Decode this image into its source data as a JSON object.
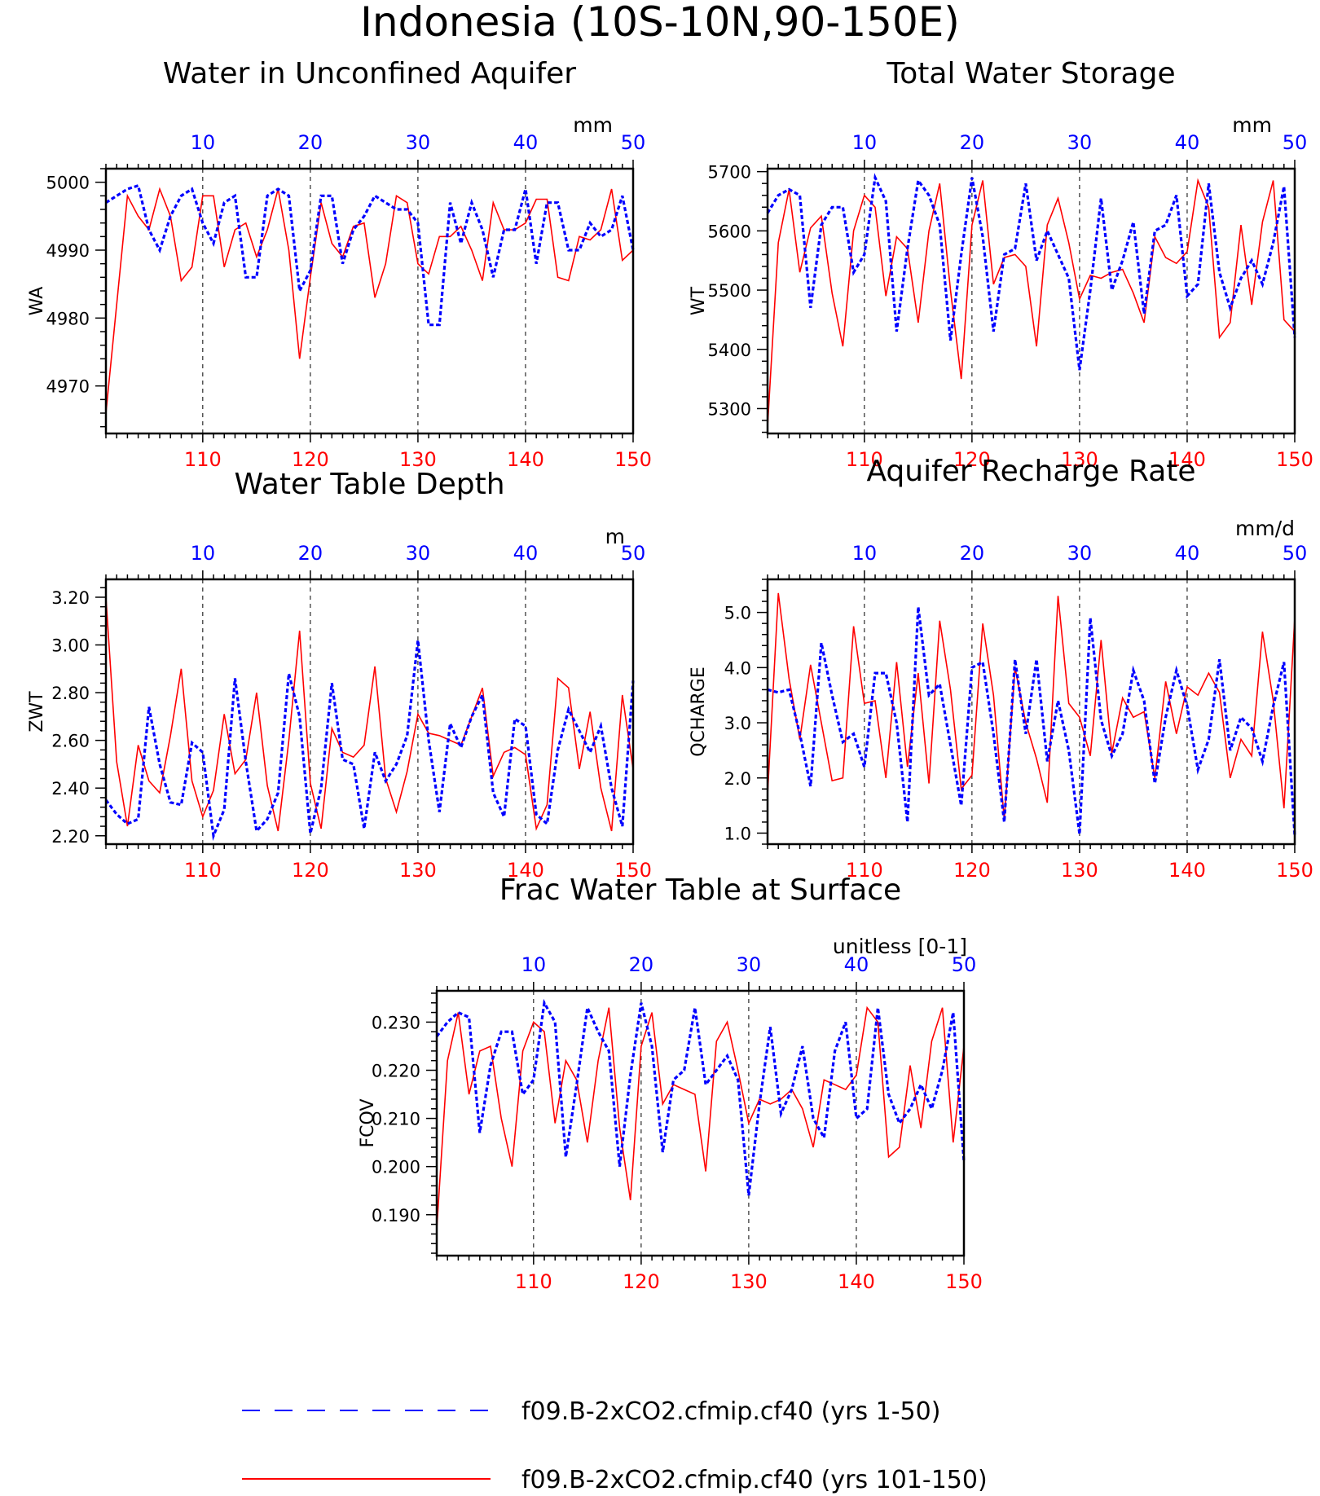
{
  "page": {
    "title": "Indonesia (10S-10N,90-150E)"
  },
  "legend": {
    "placement": "bottom",
    "entries": [
      {
        "label": "f09.B-2xCO2.cfmip.cf40 (yrs 1-50)",
        "color": "#0000ff",
        "style": "dashed"
      },
      {
        "label": "f09.B-2xCO2.cfmip.cf40 (yrs 101-150)",
        "color": "#ff0000",
        "style": "solid"
      }
    ]
  },
  "chart_data": [
    {
      "type": "line",
      "title": "Water in Unconfined Aquifer",
      "ylabel": "WA",
      "units": "mm",
      "ylim": [
        4963,
        5002
      ],
      "yticks": [
        4970,
        4980,
        4990,
        5000
      ],
      "ytick_labels": [
        "4970",
        "4980",
        "4990",
        "5000"
      ],
      "x_top": {
        "range": [
          1,
          50
        ],
        "ticks": [
          10,
          20,
          30,
          40,
          50
        ],
        "color": "#0000ff"
      },
      "x_bottom": {
        "range": [
          101,
          150
        ],
        "ticks": [
          110,
          120,
          130,
          140,
          150
        ],
        "color": "#ff0000"
      },
      "grid": "vertical dashed at major ticks",
      "series": [
        {
          "color": "#0000ff",
          "style": "dashed",
          "values": [
            4997,
            4998,
            4999,
            4999.5,
            4993,
            4990,
            4995,
            4998,
            4999,
            4994,
            4991,
            4997,
            4998,
            4986,
            4986,
            4998,
            4999,
            4998,
            4984,
            4987,
            4998,
            4998,
            4988,
            4993,
            4995,
            4998,
            4997,
            4996,
            4996,
            4994,
            4979,
            4979,
            4997,
            4991,
            4997,
            4993,
            4986,
            4993,
            4993,
            4999,
            4988,
            4997,
            4997,
            4990,
            4990,
            4994,
            4992,
            4993,
            4998,
            4990
          ]
        },
        {
          "color": "#ff0000",
          "style": "solid",
          "values": [
            4966,
            4982,
            4998,
            4995,
            4993,
            4999,
            4995,
            4985.5,
            4987.5,
            4998,
            4998,
            4987.5,
            4993,
            4994,
            4989,
            4993,
            4999,
            4990,
            4974,
            4986,
            4997,
            4991,
            4989,
            4993.5,
            4994,
            4983,
            4988,
            4998,
            4997,
            4988,
            4986.5,
            4992,
            4992,
            4993.5,
            4990,
            4985.5,
            4997,
            4993,
            4993,
            4994,
            4997.5,
            4997.5,
            4986,
            4985.5,
            4992,
            4991.5,
            4993,
            4999,
            4988.5,
            4990
          ]
        }
      ]
    },
    {
      "type": "line",
      "title": "Total Water Storage",
      "ylabel": "WT",
      "units": "mm",
      "ylim": [
        5258,
        5705
      ],
      "yticks": [
        5300,
        5400,
        5500,
        5600,
        5700
      ],
      "ytick_labels": [
        "5300",
        "5400",
        "5500",
        "5600",
        "5700"
      ],
      "x_top": {
        "range": [
          1,
          50
        ],
        "ticks": [
          10,
          20,
          30,
          40,
          50
        ],
        "color": "#0000ff"
      },
      "x_bottom": {
        "range": [
          101,
          150
        ],
        "ticks": [
          110,
          120,
          130,
          140,
          150
        ],
        "color": "#ff0000"
      },
      "grid": "vertical dashed at major ticks",
      "series": [
        {
          "color": "#0000ff",
          "style": "dashed",
          "values": [
            5630,
            5660,
            5670,
            5660,
            5470,
            5610,
            5640,
            5640,
            5530,
            5560,
            5690,
            5650,
            5430,
            5570,
            5685,
            5660,
            5610,
            5415,
            5560,
            5690,
            5590,
            5430,
            5560,
            5570,
            5680,
            5550,
            5600,
            5560,
            5520,
            5365,
            5500,
            5655,
            5500,
            5550,
            5615,
            5460,
            5600,
            5610,
            5660,
            5490,
            5510,
            5680,
            5530,
            5470,
            5520,
            5550,
            5510,
            5580,
            5675,
            5420
          ]
        },
        {
          "color": "#ff0000",
          "style": "solid",
          "values": [
            5270,
            5580,
            5670,
            5530,
            5605,
            5625,
            5495,
            5405,
            5600,
            5660,
            5640,
            5490,
            5590,
            5570,
            5445,
            5600,
            5680,
            5500,
            5350,
            5610,
            5685,
            5510,
            5555,
            5560,
            5540,
            5405,
            5610,
            5655,
            5580,
            5485,
            5525,
            5520,
            5530,
            5535,
            5495,
            5445,
            5590,
            5555,
            5545,
            5565,
            5685,
            5640,
            5420,
            5445,
            5610,
            5475,
            5615,
            5685,
            5450,
            5430
          ]
        }
      ]
    },
    {
      "type": "line",
      "title": "Water Table Depth",
      "ylabel": "ZWT",
      "units": "m",
      "ylim": [
        2.165,
        3.275
      ],
      "yticks": [
        2.2,
        2.4,
        2.6,
        2.8,
        3.0,
        3.2
      ],
      "ytick_labels": [
        "2.20",
        "2.40",
        "2.60",
        "2.80",
        "3.00",
        "3.20"
      ],
      "x_top": {
        "range": [
          1,
          50
        ],
        "ticks": [
          10,
          20,
          30,
          40,
          50
        ],
        "color": "#0000ff"
      },
      "x_bottom": {
        "range": [
          101,
          150
        ],
        "ticks": [
          110,
          120,
          130,
          140,
          150
        ],
        "color": "#ff0000"
      },
      "grid": "vertical dashed at major ticks",
      "series": [
        {
          "color": "#0000ff",
          "style": "dashed",
          "values": [
            2.35,
            2.29,
            2.25,
            2.27,
            2.74,
            2.5,
            2.34,
            2.33,
            2.59,
            2.55,
            2.2,
            2.31,
            2.86,
            2.51,
            2.22,
            2.27,
            2.38,
            2.88,
            2.7,
            2.21,
            2.4,
            2.84,
            2.52,
            2.5,
            2.23,
            2.55,
            2.43,
            2.5,
            2.62,
            3.02,
            2.6,
            2.3,
            2.67,
            2.57,
            2.7,
            2.79,
            2.38,
            2.28,
            2.69,
            2.66,
            2.29,
            2.25,
            2.56,
            2.73,
            2.64,
            2.55,
            2.66,
            2.4,
            2.24,
            2.85
          ]
        },
        {
          "color": "#ff0000",
          "style": "solid",
          "values": [
            3.2,
            2.51,
            2.24,
            2.58,
            2.43,
            2.38,
            2.62,
            2.9,
            2.43,
            2.28,
            2.39,
            2.71,
            2.46,
            2.52,
            2.8,
            2.41,
            2.22,
            2.6,
            3.06,
            2.42,
            2.23,
            2.65,
            2.55,
            2.53,
            2.58,
            2.91,
            2.44,
            2.3,
            2.47,
            2.71,
            2.63,
            2.62,
            2.6,
            2.58,
            2.7,
            2.82,
            2.45,
            2.55,
            2.57,
            2.54,
            2.23,
            2.33,
            2.86,
            2.82,
            2.48,
            2.72,
            2.4,
            2.22,
            2.79,
            2.48
          ]
        }
      ]
    },
    {
      "type": "line",
      "title": "Aquifer Recharge Rate",
      "ylabel": "QCHARGE",
      "units": "mm/d",
      "ylim": [
        0.8,
        5.6
      ],
      "yticks": [
        1.0,
        2.0,
        3.0,
        4.0,
        5.0
      ],
      "ytick_labels": [
        "1.0",
        "2.0",
        "3.0",
        "4.0",
        "5.0"
      ],
      "x_top": {
        "range": [
          1,
          50
        ],
        "ticks": [
          10,
          20,
          30,
          40,
          50
        ],
        "color": "#0000ff"
      },
      "x_bottom": {
        "range": [
          101,
          150
        ],
        "ticks": [
          110,
          120,
          130,
          140,
          150
        ],
        "color": "#ff0000"
      },
      "grid": "vertical dashed at major ticks",
      "series": [
        {
          "color": "#0000ff",
          "style": "dashed",
          "values": [
            3.6,
            3.55,
            3.6,
            2.8,
            1.85,
            4.45,
            3.5,
            2.65,
            2.8,
            2.2,
            3.9,
            3.9,
            3.0,
            1.2,
            5.1,
            3.5,
            3.7,
            2.6,
            1.5,
            4.0,
            4.1,
            2.8,
            1.2,
            4.15,
            2.8,
            4.15,
            2.3,
            3.4,
            2.5,
            0.98,
            4.9,
            3.05,
            2.4,
            2.8,
            3.95,
            3.4,
            1.9,
            3.1,
            3.95,
            3.3,
            2.15,
            2.7,
            4.15,
            2.5,
            3.1,
            2.9,
            2.3,
            3.3,
            4.1,
            0.95
          ]
        },
        {
          "color": "#ff0000",
          "style": "solid",
          "values": [
            1.7,
            5.35,
            3.8,
            2.7,
            4.05,
            3.0,
            1.95,
            2.0,
            4.75,
            3.35,
            3.4,
            2.0,
            4.1,
            2.2,
            3.9,
            1.9,
            4.85,
            3.6,
            1.8,
            2.05,
            4.8,
            3.5,
            1.25,
            4.0,
            3.0,
            2.35,
            1.55,
            5.3,
            3.35,
            3.1,
            2.4,
            4.5,
            2.45,
            3.45,
            3.1,
            3.2,
            2.0,
            3.75,
            2.8,
            3.65,
            3.5,
            3.9,
            3.55,
            2.0,
            2.7,
            2.4,
            4.65,
            3.4,
            1.45,
            4.9
          ]
        }
      ]
    },
    {
      "type": "line",
      "title": "Frac Water Table at Surface",
      "ylabel": "FCOV",
      "units": "unitless [0-1]",
      "ylim": [
        0.1815,
        0.2365
      ],
      "yticks": [
        0.19,
        0.2,
        0.21,
        0.22,
        0.23
      ],
      "ytick_labels": [
        "0.190",
        "0.200",
        "0.210",
        "0.220",
        "0.230"
      ],
      "x_top": {
        "range": [
          1,
          50
        ],
        "ticks": [
          10,
          20,
          30,
          40,
          50
        ],
        "color": "#0000ff"
      },
      "x_bottom": {
        "range": [
          101,
          150
        ],
        "ticks": [
          110,
          120,
          130,
          140,
          150
        ],
        "color": "#ff0000"
      },
      "grid": "vertical dashed at major ticks",
      "series": [
        {
          "color": "#0000ff",
          "style": "dashed",
          "values": [
            0.227,
            0.23,
            0.232,
            0.231,
            0.207,
            0.221,
            0.228,
            0.228,
            0.215,
            0.218,
            0.234,
            0.23,
            0.202,
            0.217,
            0.233,
            0.228,
            0.224,
            0.2,
            0.219,
            0.234,
            0.225,
            0.203,
            0.218,
            0.22,
            0.233,
            0.217,
            0.22,
            0.223,
            0.218,
            0.194,
            0.213,
            0.229,
            0.211,
            0.216,
            0.225,
            0.21,
            0.206,
            0.224,
            0.23,
            0.21,
            0.212,
            0.233,
            0.215,
            0.209,
            0.212,
            0.217,
            0.212,
            0.22,
            0.232,
            0.201
          ]
        },
        {
          "color": "#ff0000",
          "style": "solid",
          "values": [
            0.187,
            0.222,
            0.232,
            0.215,
            0.224,
            0.225,
            0.21,
            0.2,
            0.224,
            0.23,
            0.228,
            0.209,
            0.222,
            0.218,
            0.205,
            0.222,
            0.233,
            0.208,
            0.193,
            0.225,
            0.232,
            0.213,
            0.217,
            0.216,
            0.215,
            0.199,
            0.226,
            0.23,
            0.22,
            0.209,
            0.214,
            0.213,
            0.214,
            0.216,
            0.212,
            0.204,
            0.218,
            0.217,
            0.216,
            0.219,
            0.233,
            0.23,
            0.202,
            0.204,
            0.221,
            0.208,
            0.226,
            0.233,
            0.205,
            0.225
          ]
        }
      ]
    }
  ]
}
